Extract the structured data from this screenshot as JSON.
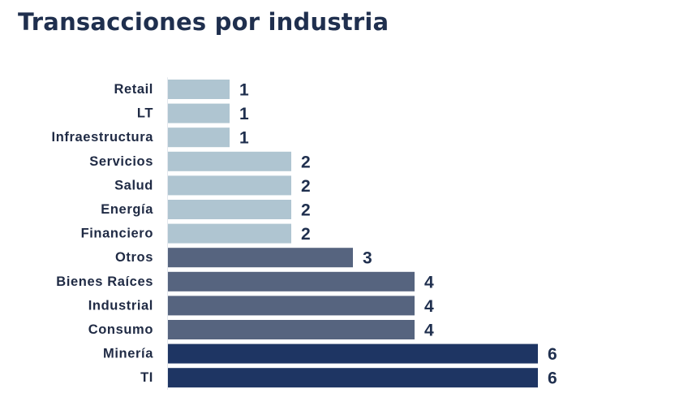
{
  "chart_data": {
    "type": "bar",
    "orientation": "horizontal",
    "title": "Transacciones por industria",
    "categories": [
      "Retail",
      "LT",
      "Infraestructura",
      "Servicios",
      "Salud",
      "Energía",
      "Financiero",
      "Otros",
      "Bienes Raíces",
      "Industrial",
      "Consumo",
      "Minería",
      "TI"
    ],
    "values": [
      1,
      1,
      1,
      2,
      2,
      2,
      2,
      3,
      4,
      4,
      4,
      6,
      6
    ],
    "xlim": [
      0,
      6
    ],
    "data_labels": true,
    "grid": false,
    "legend": "none",
    "colors": {
      "low": "#afc5d1",
      "mid": "#56647f",
      "high": "#1e3563"
    }
  }
}
